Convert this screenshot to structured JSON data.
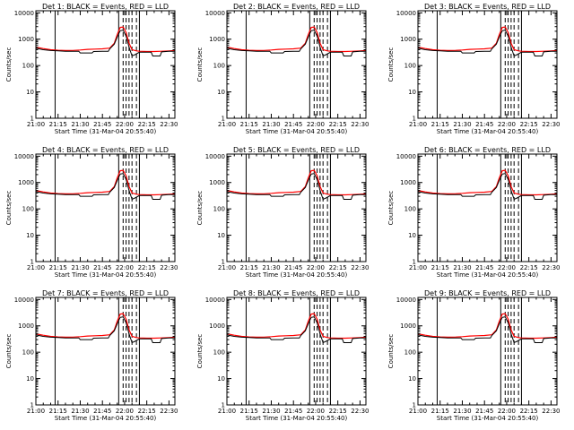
{
  "colors": {
    "background": "#ffffff",
    "axes": "#000000",
    "events": "#000000",
    "lld": "#ff0000"
  },
  "chart_data": {
    "type": "line",
    "grid": "off",
    "legend": "none",
    "y_scale": "log",
    "ylim": [
      1,
      12000
    ],
    "xlim": [
      "21:00",
      "22:34"
    ],
    "ylabel": "Counts/sec",
    "xlabel": "Start Time (31-Mar-04 20:55:40)",
    "x_ticks": [
      "21:00",
      "21:15",
      "21:30",
      "21:45",
      "22:00",
      "22:15",
      "22:30"
    ],
    "y_ticks": [
      "1",
      "10",
      "100",
      "1000",
      "10000"
    ],
    "markers": {
      "solid": [
        "21:13",
        "21:56",
        "22:10"
      ],
      "dashed": [
        "21:59",
        "22:01",
        "22:03",
        "22:05",
        "22:08"
      ]
    },
    "panels": [
      {
        "title_prefix": "Det",
        "det": "1",
        "title_rest": "BLACK = Events, RED = LLD"
      },
      {
        "title_prefix": "Det",
        "det": "2",
        "title_rest": "BLACK = Events, RED = LLD"
      },
      {
        "title_prefix": "Det",
        "det": "3",
        "title_rest": "BLACK = Events, RED = LLD"
      },
      {
        "title_prefix": "Det",
        "det": "4",
        "title_rest": "BLACK = Events, RED = LLD"
      },
      {
        "title_prefix": "Det",
        "det": "5",
        "title_rest": "BLACK = Events, RED = LLD"
      },
      {
        "title_prefix": "Det",
        "det": "6",
        "title_rest": "BLACK = Events, RED = LLD"
      },
      {
        "title_prefix": "Det",
        "det": "7",
        "title_rest": "BLACK = Events, RED = LLD"
      },
      {
        "title_prefix": "Det",
        "det": "8",
        "title_rest": "BLACK = Events, RED = LLD"
      },
      {
        "title_prefix": "Det",
        "det": "9",
        "title_rest": "BLACK = Events, RED = LLD"
      }
    ],
    "series": [
      {
        "legend": "RED = LLD",
        "x": [
          "21:00",
          "21:05",
          "21:10",
          "21:15",
          "21:20",
          "21:25",
          "21:30",
          "21:35",
          "21:40",
          "21:45",
          "21:50",
          "21:53",
          "21:55",
          "21:57",
          "21:59",
          "22:01",
          "22:03",
          "22:05",
          "22:08",
          "22:10",
          "22:15",
          "22:20",
          "22:25",
          "22:30",
          "22:34"
        ],
        "values": [
          500,
          440,
          400,
          380,
          370,
          375,
          390,
          410,
          420,
          430,
          460,
          700,
          1500,
          2800,
          2900,
          1800,
          700,
          400,
          360,
          350,
          340,
          340,
          350,
          360,
          370
        ]
      },
      {
        "legend": "BLACK = Events",
        "x": [
          "21:00",
          "21:05",
          "21:10",
          "21:15",
          "21:20",
          "21:25",
          "21:29",
          "21:30",
          "21:38",
          "21:39",
          "21:45",
          "21:49",
          "21:50",
          "21:53",
          "21:55",
          "21:57",
          "21:59",
          "22:01",
          "22:03",
          "22:05",
          "22:07",
          "22:10",
          "22:15",
          "22:18",
          "22:19",
          "22:24",
          "22:25",
          "22:30",
          "22:34"
        ],
        "values": [
          450,
          400,
          370,
          360,
          350,
          350,
          350,
          300,
          300,
          340,
          350,
          350,
          430,
          650,
          1200,
          2100,
          2200,
          1300,
          500,
          230,
          260,
          320,
          320,
          320,
          230,
          230,
          330,
          350,
          350
        ]
      }
    ]
  }
}
